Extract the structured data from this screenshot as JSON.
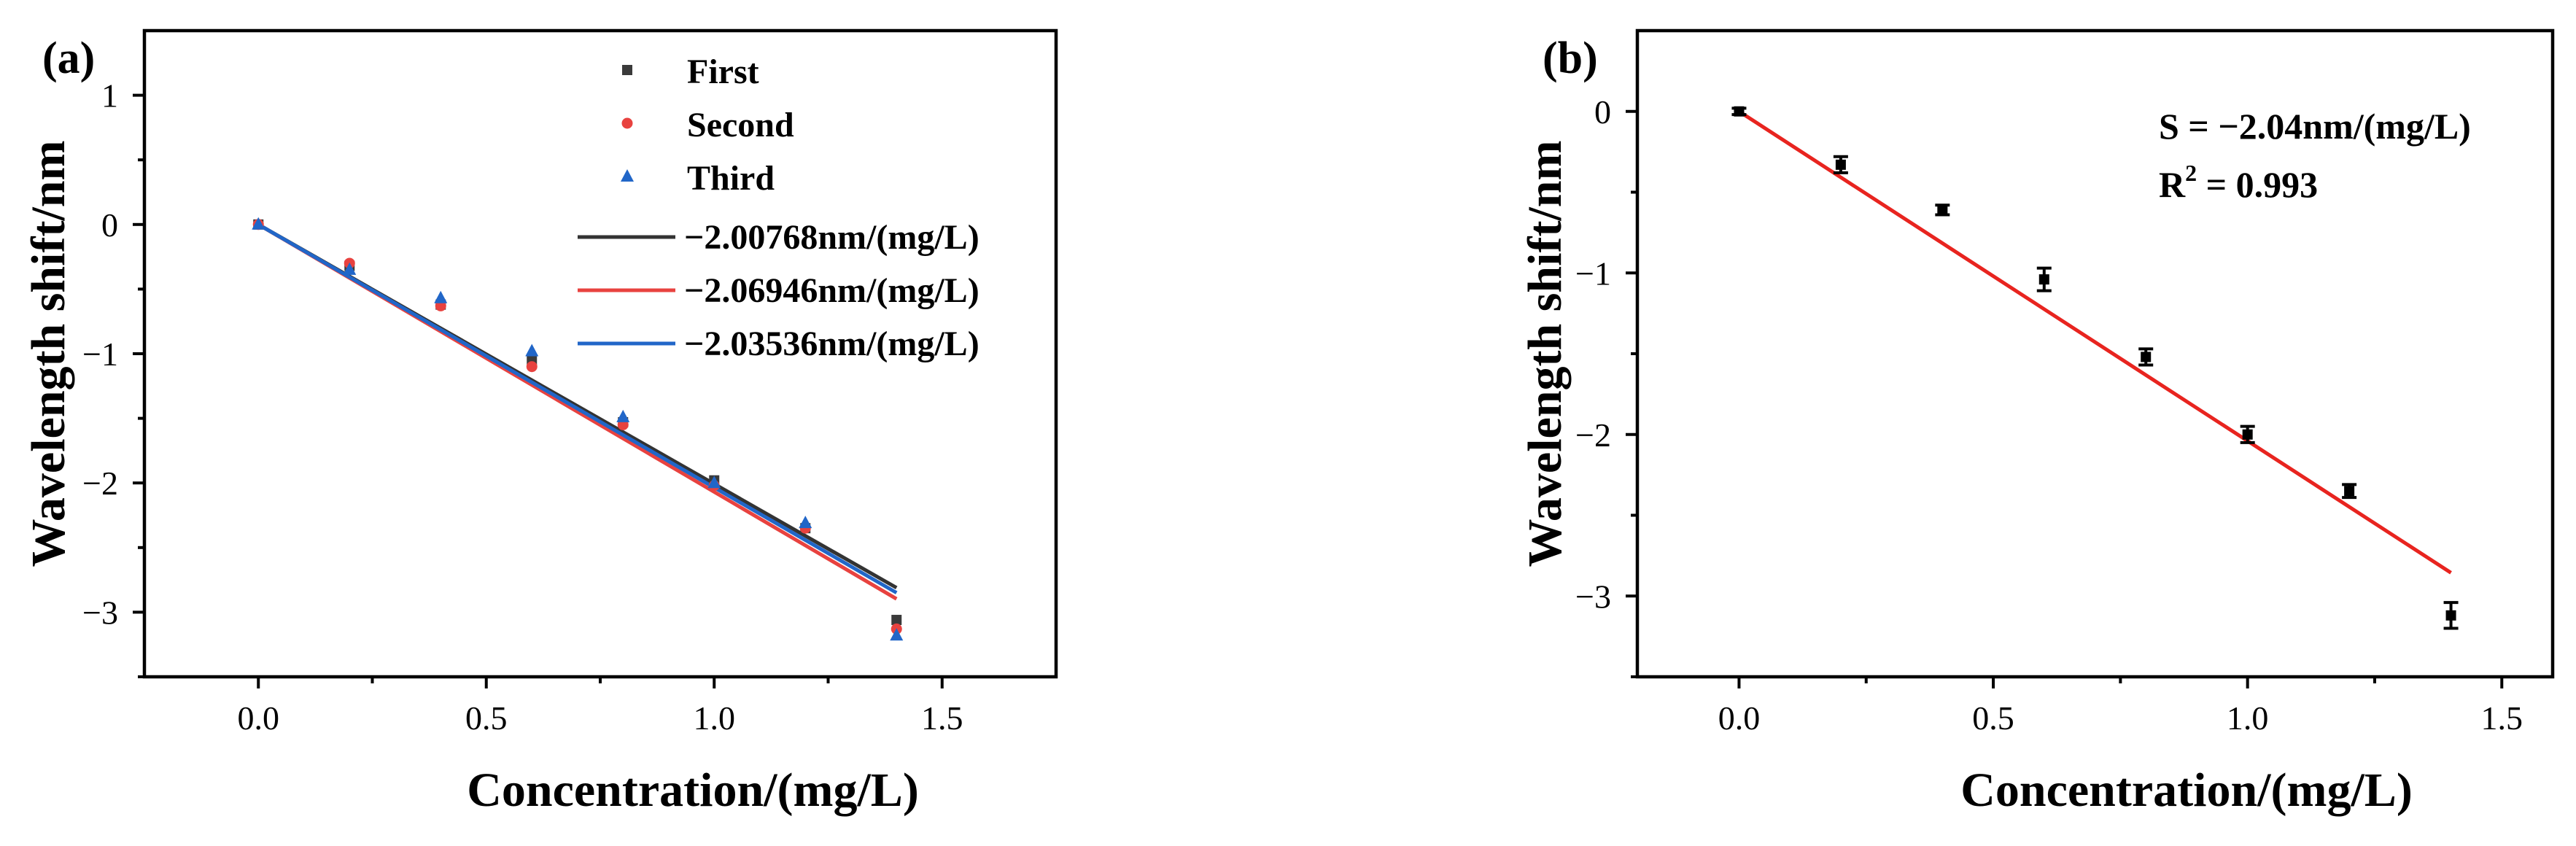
{
  "chart_data": [
    {
      "panel": "(a)",
      "type": "scatter",
      "xlabel": "Concentration/(mg/L)",
      "ylabel": "Wavelength shift/nm",
      "xlim": [
        -0.25,
        1.75
      ],
      "ylim": [
        -3.5,
        1.5
      ],
      "xticks": [
        "0.0",
        "0.5",
        "1.0",
        "1.5"
      ],
      "yticks": [
        "1",
        "0",
        "−1",
        "−2",
        "−3"
      ],
      "xtick_values": [
        0,
        0.5,
        1.0,
        1.5
      ],
      "ytick_values": [
        1,
        0,
        -1,
        -2,
        -3
      ],
      "legend_position": "top-right",
      "series": [
        {
          "name": "First",
          "marker": "square",
          "color": "#3a3a3a",
          "x": [
            0,
            0.2,
            0.4,
            0.6,
            0.8,
            1.0,
            1.2,
            1.4
          ],
          "y": [
            0,
            -0.32,
            -0.62,
            -1.05,
            -1.53,
            -1.98,
            -2.35,
            -3.06
          ]
        },
        {
          "name": "Second",
          "marker": "circle",
          "color": "#e8423f",
          "x": [
            0,
            0.2,
            0.4,
            0.6,
            0.8,
            1.0,
            1.2,
            1.4
          ],
          "y": [
            0,
            -0.3,
            -0.63,
            -1.1,
            -1.55,
            -2.02,
            -2.35,
            -3.13
          ]
        },
        {
          "name": "Third",
          "marker": "triangle",
          "color": "#2166c8",
          "x": [
            0,
            0.2,
            0.4,
            0.6,
            0.8,
            1.0,
            1.2,
            1.4
          ],
          "y": [
            0,
            -0.35,
            -0.57,
            -0.98,
            -1.49,
            -2.0,
            -2.31,
            -3.18
          ]
        }
      ],
      "fits": [
        {
          "name": "−2.00768nm/(mg/L)",
          "slope": -2.00768,
          "color": "#333333"
        },
        {
          "name": "−2.06946nm/(mg/L)",
          "slope": -2.06946,
          "color": "#e8423f"
        },
        {
          "name": "−2.03536nm/(mg/L)",
          "slope": -2.03536,
          "color": "#2166c8"
        }
      ]
    },
    {
      "panel": "(b)",
      "type": "scatter",
      "xlabel": "Concentration/(mg/L)",
      "ylabel": "Wavelength shift/nm",
      "xlim": [
        -0.2,
        1.6
      ],
      "ylim": [
        -3.5,
        0.5
      ],
      "xticks": [
        "0.0",
        "0.5",
        "1.0",
        "1.5"
      ],
      "yticks": [
        "0",
        "−1",
        "−2",
        "−3"
      ],
      "xtick_values": [
        0,
        0.5,
        1.0,
        1.5
      ],
      "ytick_values": [
        0,
        -1,
        -2,
        -3
      ],
      "series": [
        {
          "name": "",
          "marker": "square",
          "color": "#000000",
          "x": [
            0,
            0.2,
            0.4,
            0.6,
            0.8,
            1.0,
            1.2,
            1.4
          ],
          "y": [
            0,
            -0.33,
            -0.61,
            -1.04,
            -1.52,
            -2.0,
            -2.35,
            -3.12
          ],
          "err": [
            0.02,
            0.05,
            0.03,
            0.07,
            0.05,
            0.05,
            0.04,
            0.08
          ]
        }
      ],
      "fit": {
        "slope": -2.04,
        "color": "#e8241f"
      },
      "annotations": {
        "slope": "S = −2.04nm/(mg/L)",
        "r2_prefix": "R",
        "r2_sup": "2",
        "r2_value": " = 0.993"
      }
    }
  ]
}
